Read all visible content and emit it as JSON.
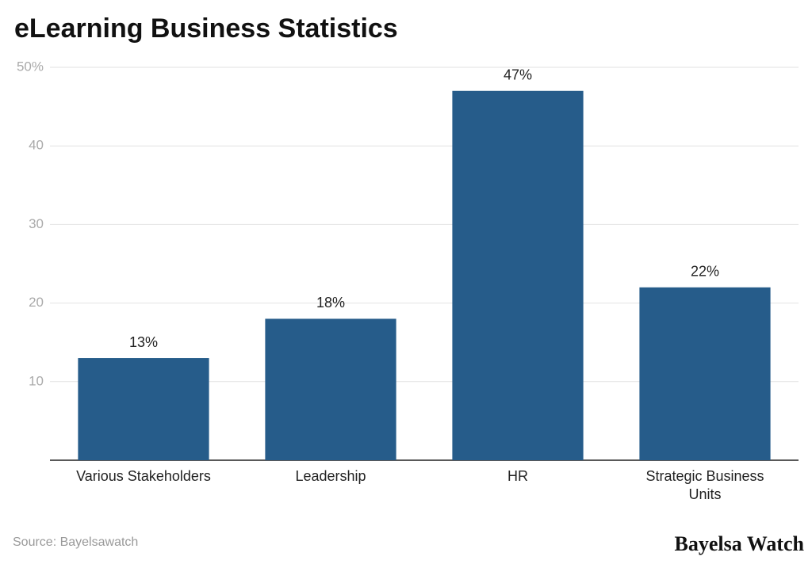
{
  "chart_data": {
    "type": "bar",
    "title": "eLearning Business Statistics",
    "categories": [
      "Various Stakeholders",
      "Leadership",
      "HR",
      "Strategic Business Units"
    ],
    "values": [
      13,
      18,
      47,
      22
    ],
    "value_labels": [
      "13%",
      "18%",
      "47%",
      "22%"
    ],
    "color": "#265c8a",
    "ylim": [
      0,
      50
    ],
    "yticks": [
      10,
      20,
      30,
      40,
      {
        "value": 50,
        "label": "50%"
      }
    ],
    "grid": true,
    "source": "Source: Bayelsawatch",
    "brand": "Bayelsa Watch"
  }
}
